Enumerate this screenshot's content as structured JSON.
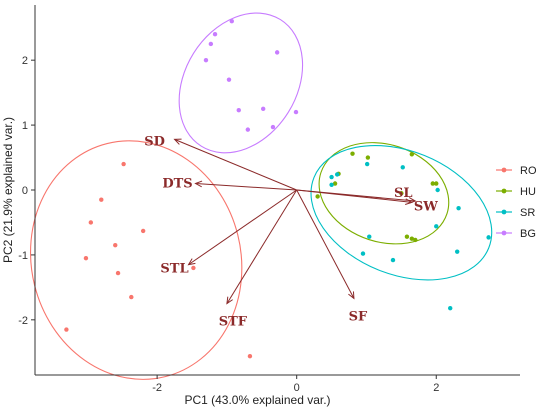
{
  "chart_data": {
    "type": "scatter",
    "xlabel": "PC1 (43.0% explained var.)",
    "ylabel": "PC2 (21.9% explained var.)",
    "xlim": [
      -3.75,
      3.2
    ],
    "ylim": [
      -2.85,
      2.85
    ],
    "x_ticks": [
      -2,
      0,
      2
    ],
    "x_tick_labels": [
      "-2",
      "0",
      "2"
    ],
    "y_ticks": [
      -2,
      -1,
      0,
      1,
      2
    ],
    "y_tick_labels": [
      "-2",
      "-1",
      "0",
      "1",
      "2"
    ],
    "grid": false,
    "legend_position": "right",
    "series": [
      {
        "name": "RO",
        "color": "#f8766d",
        "points": [
          [
            -2.48,
            0.4
          ],
          [
            -2.8,
            -0.15
          ],
          [
            -2.95,
            -0.5
          ],
          [
            -2.2,
            -0.63
          ],
          [
            -2.6,
            -0.85
          ],
          [
            -3.02,
            -1.05
          ],
          [
            -2.56,
            -1.28
          ],
          [
            -1.48,
            -1.2
          ],
          [
            -2.37,
            -1.65
          ],
          [
            -3.3,
            -2.15
          ],
          [
            -0.67,
            -2.56
          ]
        ],
        "ellipse": {
          "cx": -2.3,
          "cy": -1.08,
          "rx": 1.5,
          "ry": 1.85,
          "angle_deg": 14
        }
      },
      {
        "name": "HU",
        "color": "#7cae00",
        "points": [
          [
            0.8,
            0.56
          ],
          [
            1.02,
            0.5
          ],
          [
            1.65,
            0.55
          ],
          [
            1.95,
            0.1
          ],
          [
            2.0,
            0.1
          ],
          [
            1.5,
            -0.05
          ],
          [
            0.55,
            0.1
          ],
          [
            0.6,
            0.25
          ],
          [
            0.3,
            -0.1
          ],
          [
            1.7,
            -0.77
          ],
          [
            1.58,
            -0.72
          ],
          [
            1.65,
            -0.75
          ]
        ],
        "ellipse": {
          "cx": 1.25,
          "cy": -0.05,
          "rx": 0.95,
          "ry": 0.75,
          "angle_deg": -18
        }
      },
      {
        "name": "SR",
        "color": "#00bfc4",
        "points": [
          [
            0.5,
            0.2
          ],
          [
            0.58,
            0.24
          ],
          [
            0.5,
            0.08
          ],
          [
            1.01,
            0.4
          ],
          [
            1.52,
            0.35
          ],
          [
            2.02,
            0.0
          ],
          [
            2.32,
            -0.28
          ],
          [
            1.04,
            -0.72
          ],
          [
            2.0,
            -0.56
          ],
          [
            2.3,
            -0.95
          ],
          [
            1.38,
            -1.08
          ],
          [
            2.75,
            -0.73
          ],
          [
            0.95,
            -0.98
          ],
          [
            2.2,
            -1.82
          ]
        ],
        "ellipse": {
          "cx": 1.5,
          "cy": -0.35,
          "rx": 1.35,
          "ry": 0.95,
          "angle_deg": -22
        }
      },
      {
        "name": "BG",
        "color": "#c77cff",
        "points": [
          [
            -0.93,
            2.6
          ],
          [
            -1.17,
            2.4
          ],
          [
            -1.23,
            2.25
          ],
          [
            -1.3,
            2.0
          ],
          [
            -0.28,
            2.12
          ],
          [
            -0.97,
            1.7
          ],
          [
            -0.83,
            1.23
          ],
          [
            -0.48,
            1.25
          ],
          [
            -0.01,
            1.2
          ],
          [
            -0.34,
            0.97
          ],
          [
            -0.7,
            0.93
          ]
        ],
        "ellipse": {
          "cx": -0.8,
          "cy": 1.65,
          "rx": 0.8,
          "ry": 1.15,
          "angle_deg": -32
        }
      }
    ],
    "vectors": [
      {
        "label": "SD",
        "x": -1.75,
        "y": 0.78
      },
      {
        "label": "DTS",
        "x": -1.45,
        "y": 0.1
      },
      {
        "label": "SL",
        "x": 1.7,
        "y": -0.17
      },
      {
        "label": "SW",
        "x": 1.65,
        "y": -0.19
      },
      {
        "label": "STL",
        "x": -1.55,
        "y": -1.15
      },
      {
        "label": "STF",
        "x": -1.0,
        "y": -1.75
      },
      {
        "label": "SF",
        "x": 0.82,
        "y": -1.67
      }
    ]
  },
  "colors": {
    "vector": "#8b2a2a",
    "axis": "#333333"
  }
}
